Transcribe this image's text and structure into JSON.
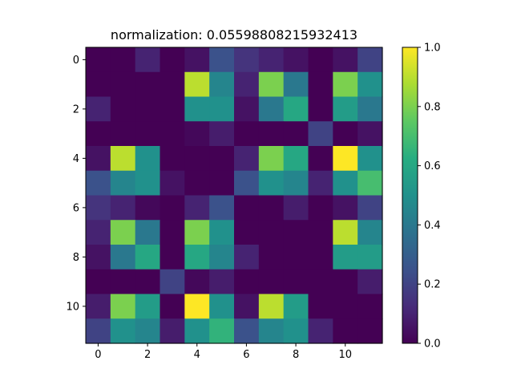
{
  "chart_data": {
    "type": "heatmap",
    "title": "normalization:  0.05598808215932413",
    "colormap": "viridis",
    "rows": 12,
    "cols": 12,
    "xticks": [
      0,
      2,
      4,
      6,
      8,
      10
    ],
    "yticks": [
      0,
      2,
      4,
      6,
      8,
      10
    ],
    "colorbar": {
      "range": [
        0.0,
        1.0
      ],
      "ticks": [
        "0.0",
        "0.2",
        "0.4",
        "0.6",
        "0.8",
        "1.0"
      ]
    },
    "values": [
      [
        0.0,
        0.0,
        0.1,
        0.0,
        0.05,
        0.25,
        0.15,
        0.1,
        0.05,
        0.0,
        0.05,
        0.2
      ],
      [
        0.0,
        0.0,
        0.0,
        0.0,
        0.9,
        0.45,
        0.1,
        0.8,
        0.4,
        0.0,
        0.8,
        0.5
      ],
      [
        0.1,
        0.0,
        0.0,
        0.0,
        0.5,
        0.5,
        0.05,
        0.4,
        0.6,
        0.0,
        0.55,
        0.4
      ],
      [
        0.0,
        0.0,
        0.0,
        0.0,
        0.02,
        0.08,
        0.0,
        0.0,
        0.0,
        0.2,
        0.0,
        0.05
      ],
      [
        0.05,
        0.9,
        0.5,
        0.0,
        0.0,
        0.0,
        0.1,
        0.8,
        0.6,
        0.0,
        1.0,
        0.5
      ],
      [
        0.25,
        0.45,
        0.5,
        0.05,
        0.0,
        0.0,
        0.25,
        0.5,
        0.45,
        0.1,
        0.5,
        0.7
      ],
      [
        0.15,
        0.1,
        0.02,
        0.0,
        0.1,
        0.25,
        0.0,
        0.0,
        0.08,
        0.0,
        0.05,
        0.2
      ],
      [
        0.1,
        0.8,
        0.4,
        0.0,
        0.8,
        0.5,
        0.0,
        0.0,
        0.0,
        0.0,
        0.9,
        0.45
      ],
      [
        0.05,
        0.4,
        0.6,
        0.0,
        0.6,
        0.45,
        0.1,
        0.0,
        0.0,
        0.0,
        0.55,
        0.55
      ],
      [
        0.0,
        0.0,
        0.0,
        0.2,
        0.02,
        0.08,
        0.0,
        0.0,
        0.0,
        0.0,
        0.0,
        0.08
      ],
      [
        0.08,
        0.8,
        0.55,
        0.0,
        1.0,
        0.5,
        0.05,
        0.9,
        0.55,
        0.0,
        0.0,
        0.0
      ],
      [
        0.2,
        0.5,
        0.45,
        0.08,
        0.5,
        0.65,
        0.25,
        0.45,
        0.5,
        0.1,
        0.0,
        0.0
      ]
    ]
  }
}
